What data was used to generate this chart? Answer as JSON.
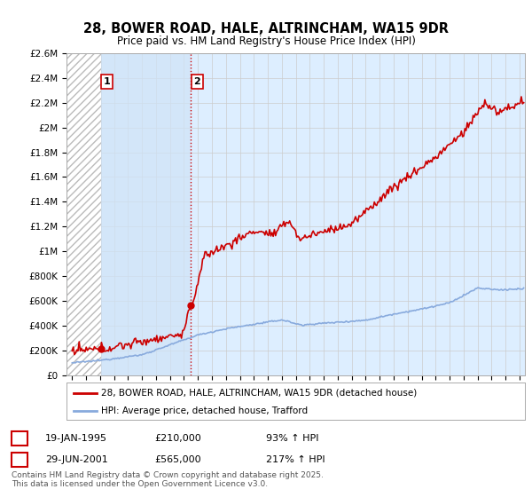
{
  "title": "28, BOWER ROAD, HALE, ALTRINCHAM, WA15 9DR",
  "subtitle": "Price paid vs. HM Land Registry's House Price Index (HPI)",
  "legend_line1": "28, BOWER ROAD, HALE, ALTRINCHAM, WA15 9DR (detached house)",
  "legend_line2": "HPI: Average price, detached house, Trafford",
  "footnote": "Contains HM Land Registry data © Crown copyright and database right 2025.\nThis data is licensed under the Open Government Licence v3.0.",
  "sale1_date": "19-JAN-1995",
  "sale1_price": "£210,000",
  "sale1_hpi": "93% ↑ HPI",
  "sale2_date": "29-JUN-2001",
  "sale2_price": "£565,000",
  "sale2_hpi": "217% ↑ HPI",
  "sale1_x": 1995.05,
  "sale1_y": 210000,
  "sale2_x": 2001.5,
  "sale2_y": 565000,
  "ylim": [
    0,
    2600000
  ],
  "xlim": [
    1992.6,
    2025.4
  ],
  "red_color": "#cc0000",
  "blue_color": "#88aadd",
  "hatch_edgecolor": "#bbbbbb",
  "bg_color": "#ddeeff",
  "shade_color": "#d0e4f7",
  "plot_bg": "#ffffff",
  "grid_color": "#cccccc"
}
